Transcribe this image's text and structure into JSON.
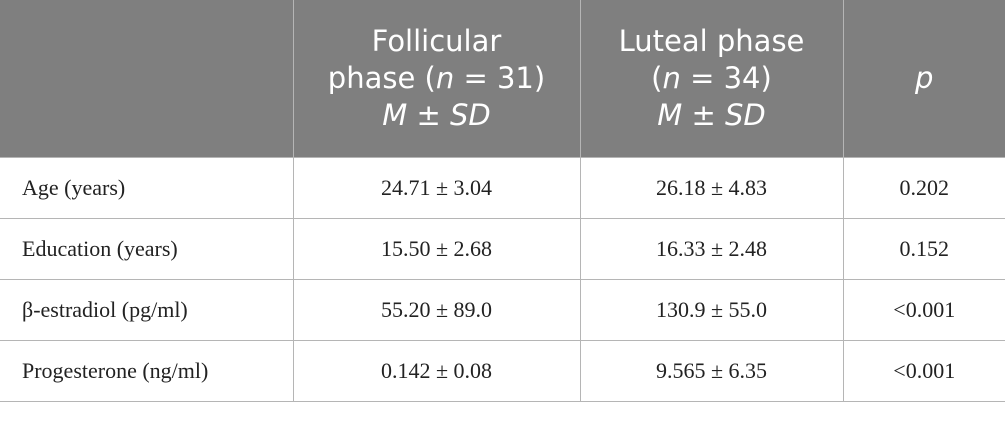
{
  "table": {
    "header": [
      [
        [
          {
            "text": "Follicular"
          }
        ],
        [
          {
            "text": "phase ("
          },
          {
            "text": "n",
            "italic": true
          },
          {
            "text": " = 31)"
          }
        ],
        [
          {
            "text": "M ± SD",
            "italic": true
          }
        ]
      ],
      [
        [
          {
            "text": "Luteal phase"
          }
        ],
        [
          {
            "text": "("
          },
          {
            "text": "n",
            "italic": true
          },
          {
            "text": " = 34)"
          }
        ],
        [
          {
            "text": "M ± SD",
            "italic": true
          }
        ]
      ],
      [
        [
          {
            "text": "p",
            "italic": true
          }
        ]
      ]
    ],
    "rows": [
      [
        "Age (years)",
        "24.71 ± 3.04",
        "26.18 ± 4.83",
        "0.202"
      ],
      [
        "Education (years)",
        "15.50 ± 2.68",
        "16.33 ± 2.48",
        "0.152"
      ],
      [
        "β-estradiol (pg/ml)",
        "55.20 ± 89.0",
        "130.9 ± 55.0",
        "<0.001"
      ],
      [
        "Progesterone (ng/ml)",
        "0.142 ± 0.08",
        "9.565 ± 6.35",
        "<0.001"
      ]
    ]
  }
}
